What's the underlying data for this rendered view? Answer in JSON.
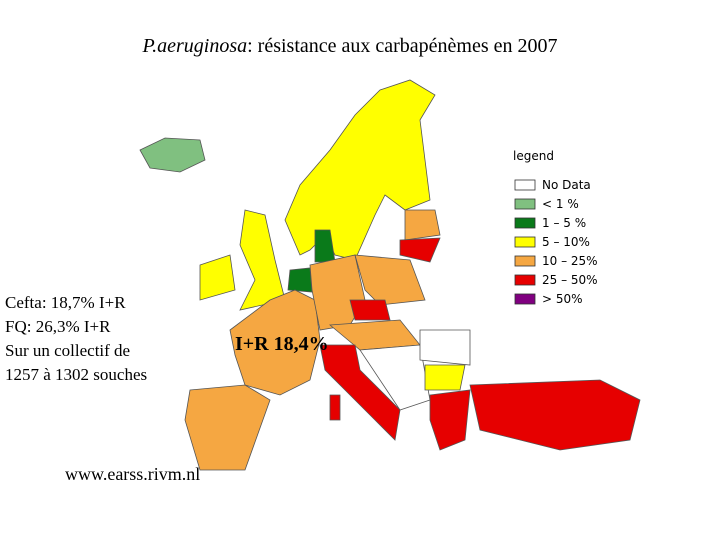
{
  "header": {
    "title_italic": "P.aeruginosa",
    "title_rest": ": résistance aux carbapénèmes en 2007"
  },
  "legend": {
    "title": "legend",
    "items": [
      {
        "label": "No Data",
        "color": "#ffffff"
      },
      {
        "label": "< 1 %",
        "color": "#80c080"
      },
      {
        "label": "1 – 5 %",
        "color": "#0a7a1a"
      },
      {
        "label": "5 – 10%",
        "color": "#ffff00"
      },
      {
        "label": "10 – 25%",
        "color": "#f5a742"
      },
      {
        "label": "25 – 50%",
        "color": "#e60000"
      },
      {
        "label": "> 50%",
        "color": "#800080"
      }
    ]
  },
  "notes": [
    "Cefta: 18,7% I+R",
    "FQ: 26,3% I+R",
    "Sur un collectif de",
    "1257 à 1302 souches"
  ],
  "map_label": "I+R 18,4%",
  "source": "www.earss.rivm.nl"
}
